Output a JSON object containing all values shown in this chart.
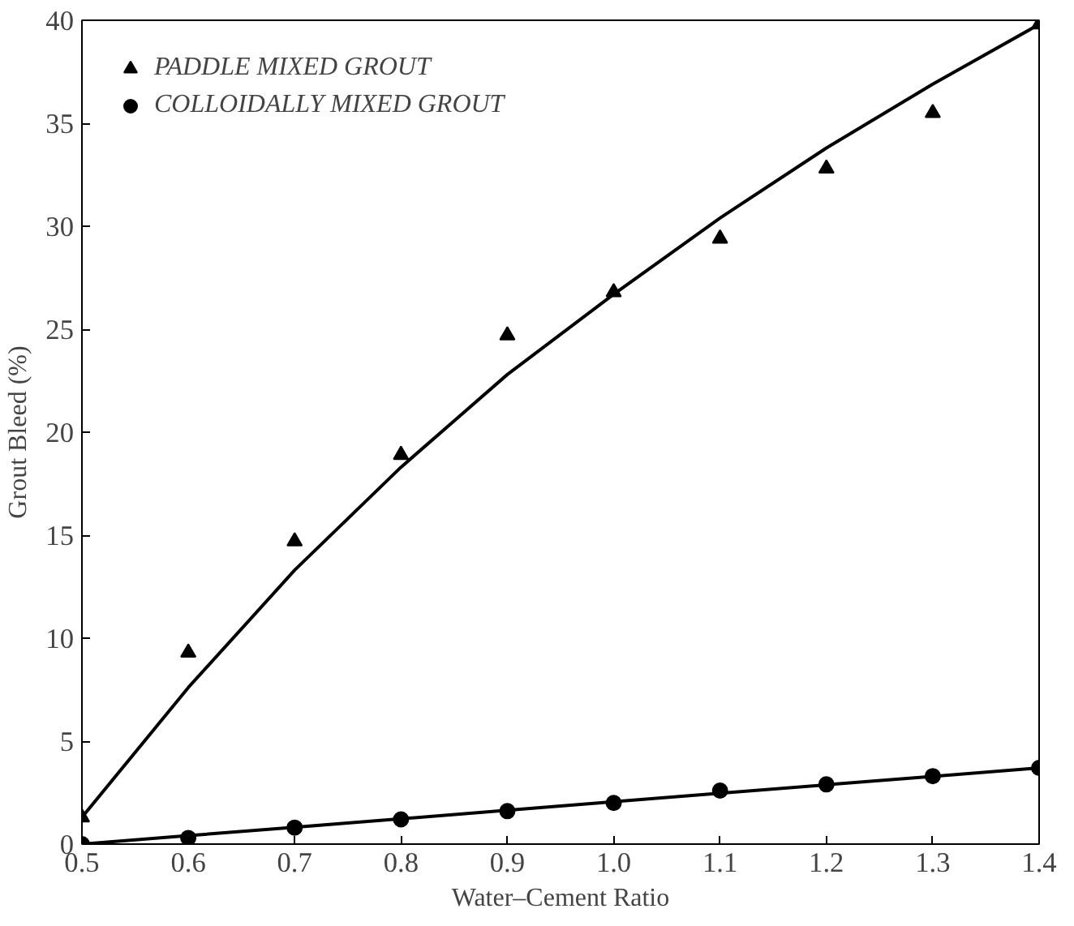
{
  "chart_data": {
    "type": "scatter",
    "xlabel": "Water–Cement Ratio",
    "ylabel": "Grout Bleed (%)",
    "x": [
      0.5,
      0.6,
      0.7,
      0.8,
      0.9,
      1.0,
      1.1,
      1.2,
      1.3,
      1.4
    ],
    "series": [
      {
        "name": "PADDLE MIXED GROUT",
        "color": "#000000",
        "marker": "triangle",
        "values": [
          1.3,
          9.3,
          14.7,
          18.9,
          24.7,
          26.8,
          29.4,
          32.8,
          35.5,
          39.8
        ]
      },
      {
        "name": "COLLOIDALLY MIXED GROUT",
        "color": "#000000",
        "marker": "circle",
        "values": [
          0,
          0.3,
          0.8,
          1.2,
          1.6,
          2.0,
          2.6,
          2.9,
          3.3,
          3.7
        ]
      },
      {
        "type": "line",
        "color": "#000000",
        "marker": "none",
        "values": [
          1.3,
          7.6,
          13.3,
          18.3,
          22.8,
          26.7,
          30.4,
          33.8,
          36.9,
          39.8
        ]
      },
      {
        "type": "line",
        "color": "#000000",
        "marker": "none",
        "values": [
          0,
          0.41,
          0.82,
          1.23,
          1.64,
          2.06,
          2.47,
          2.88,
          3.29,
          3.7
        ]
      }
    ],
    "xlim": [
      0.5,
      1.4
    ],
    "ylim": [
      0,
      40
    ],
    "xticks": [
      0.5,
      0.6,
      0.7,
      0.8,
      0.9,
      {
        "value": 1.0,
        "label": "1.0"
      },
      1.1,
      1.2,
      1.3,
      1.4
    ],
    "yticks": [
      0,
      5,
      10,
      15,
      20,
      25,
      30,
      35,
      40
    ],
    "grid": false,
    "legend": "top left"
  }
}
